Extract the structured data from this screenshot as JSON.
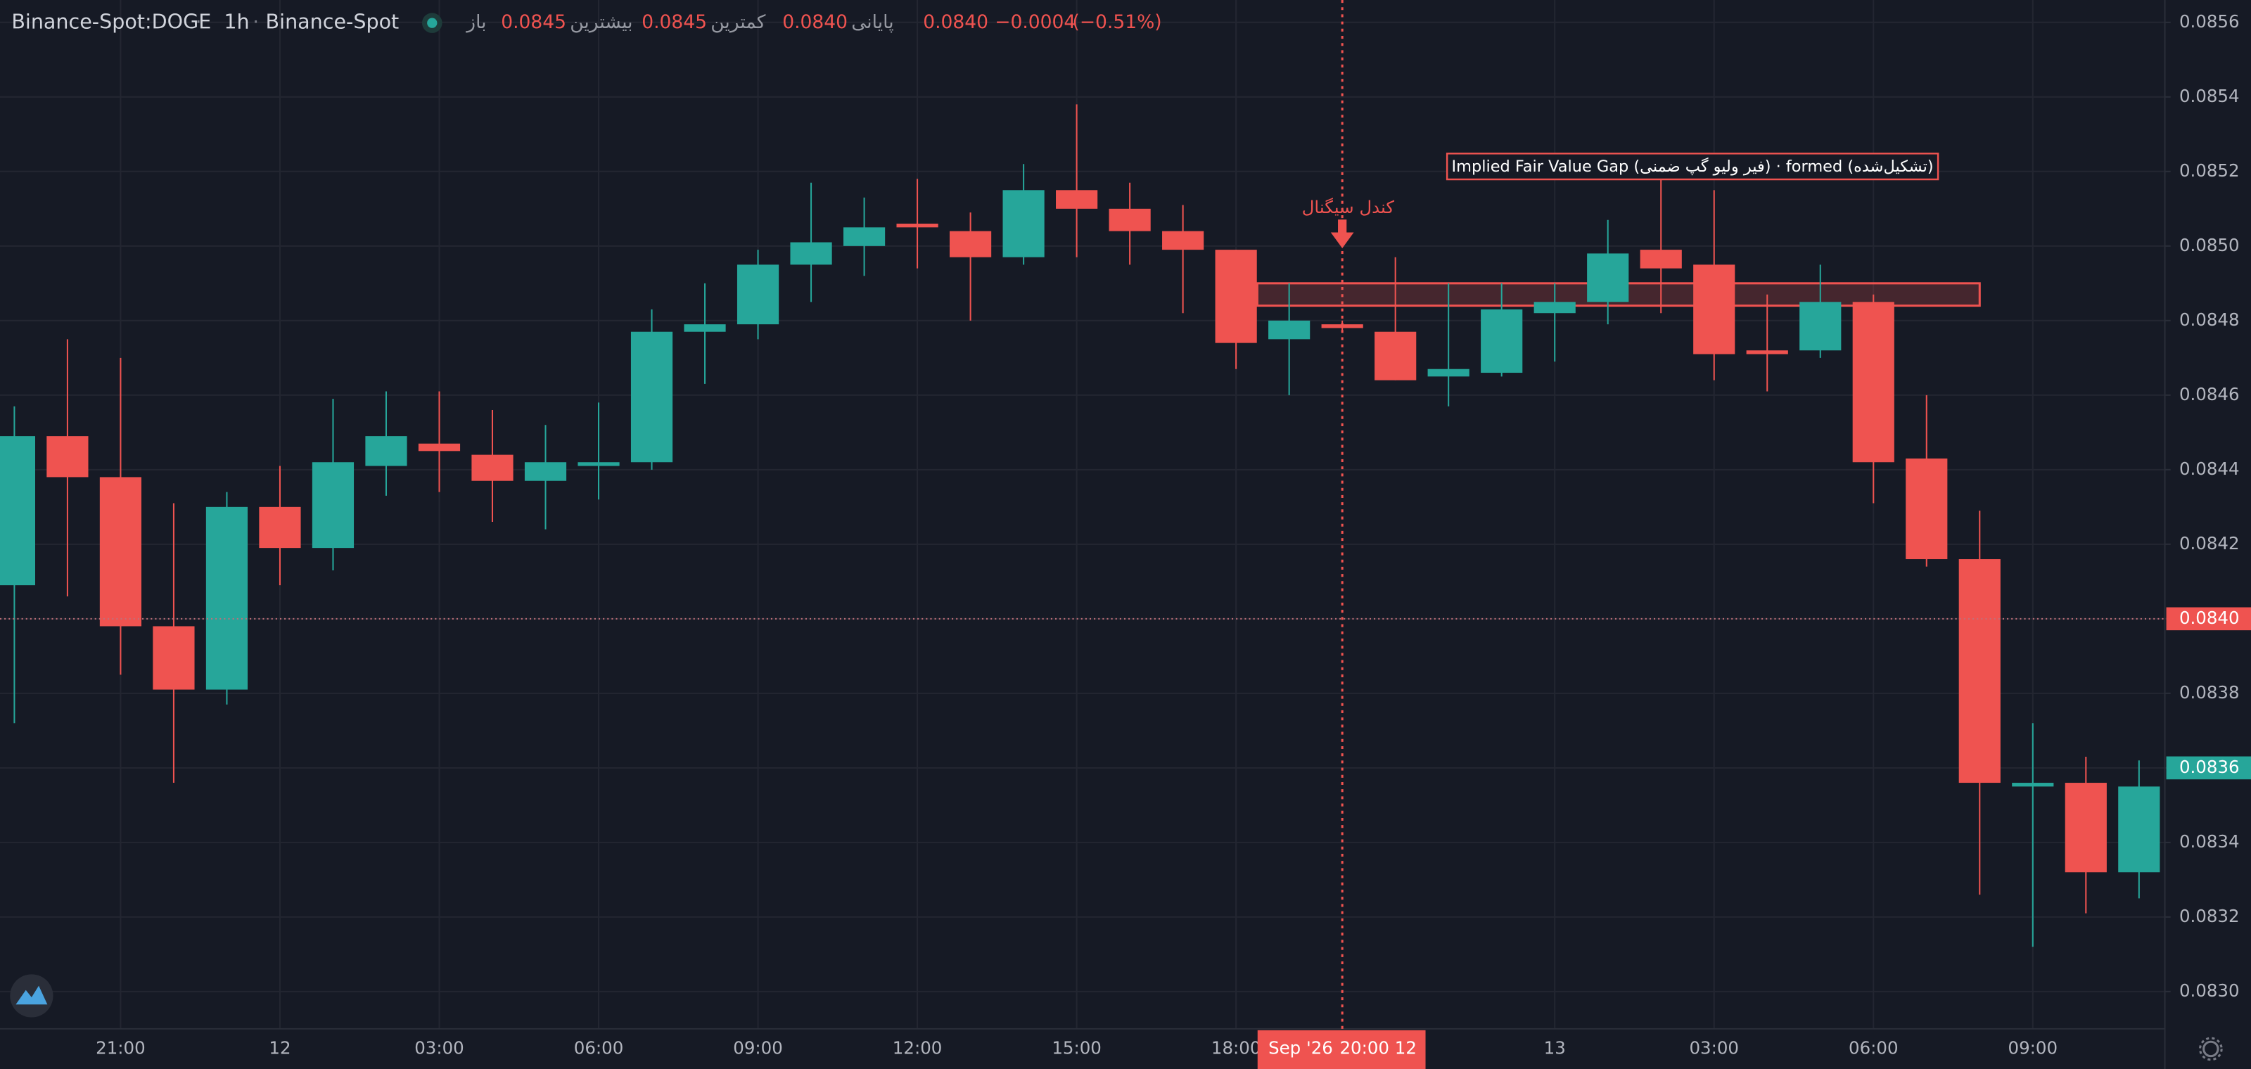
{
  "chart_data": {
    "type": "candlestick",
    "symbol": "Binance-Spot:DOGE",
    "interval": "1h",
    "exchange": "Binance-Spot",
    "legend": [
      {
        "label": "باز",
        "value": 0.0845
      },
      {
        "label": "بیشترین",
        "value": 0.0845
      },
      {
        "label": "کمترین",
        "value": {
          "value": 0.084,
          "label": "0.0840"
        }
      },
      {
        "label": "پایانی",
        "value": {
          "value": 0.084,
          "label": "0.0840"
        }
      }
    ],
    "change": {
      "value": -0.0004,
      "label": "−0.0004"
    },
    "change_percent": {
      "value": -0.51,
      "label": "(−0.51%)"
    },
    "categories": [
      null,
      null,
      "21:00",
      null,
      null,
      "12",
      null,
      null,
      "03:00",
      null,
      null,
      "06:00",
      null,
      null,
      "09:00",
      null,
      null,
      "12:00",
      null,
      null,
      "15:00",
      null,
      null,
      "18:00",
      null,
      null,
      null,
      null,
      null,
      "13",
      null,
      null,
      "03:00",
      null,
      null,
      "06:00",
      null,
      null,
      "09:00",
      null,
      null
    ],
    "open": [
      0.08409,
      0.08449,
      0.08438,
      0.08398,
      0.08381,
      0.0843,
      0.08419,
      0.08441,
      0.08447,
      0.08444,
      0.08437,
      0.08441,
      0.08442,
      0.08477,
      0.08479,
      0.08495,
      0.085,
      0.08506,
      0.08504,
      0.08497,
      0.08515,
      0.0851,
      0.08504,
      0.08499,
      0.08475,
      0.08479,
      0.08477,
      0.08465,
      0.08466,
      0.08482,
      0.08485,
      0.08499,
      0.08495,
      0.08472,
      0.08472,
      0.08485,
      0.08443,
      0.08416,
      0.08355,
      0.08356,
      0.08332
    ],
    "high": [
      0.08457,
      0.08475,
      0.0847,
      0.08431,
      0.08434,
      0.08441,
      0.08459,
      0.08461,
      0.08461,
      0.08456,
      0.08452,
      0.08458,
      0.08483,
      0.0849,
      0.08499,
      0.08517,
      0.08513,
      0.08518,
      0.08509,
      0.08522,
      0.08538,
      0.08517,
      0.08511,
      0.08499,
      0.0849,
      0.0848,
      0.08497,
      0.0849,
      0.0849,
      0.0849,
      0.08507,
      0.08518,
      0.08515,
      0.08487,
      0.08495,
      0.08487,
      0.0846,
      0.08429,
      0.08372,
      0.08363,
      0.08362
    ],
    "low": [
      0.08372,
      0.08406,
      0.08385,
      0.08356,
      0.08377,
      0.08409,
      0.08413,
      0.08433,
      0.08434,
      0.08426,
      0.08424,
      0.08432,
      0.0844,
      0.08463,
      0.08475,
      0.08485,
      0.08492,
      0.08494,
      0.0848,
      0.08495,
      0.08497,
      0.08495,
      0.08482,
      0.08467,
      0.0846,
      0.08477,
      0.08464,
      0.08457,
      0.08465,
      0.08469,
      0.08479,
      0.08482,
      0.08464,
      0.08461,
      0.0847,
      0.08431,
      0.08414,
      0.08326,
      0.08312,
      0.08321,
      0.08325
    ],
    "close": [
      0.08449,
      0.08438,
      0.08398,
      0.08381,
      0.0843,
      0.08419,
      0.08442,
      0.08449,
      0.08445,
      0.08437,
      0.08442,
      0.08442,
      0.08477,
      0.08479,
      0.08495,
      0.08501,
      0.08505,
      0.08505,
      0.08497,
      0.08515,
      0.0851,
      0.08504,
      0.08499,
      0.08474,
      0.0848,
      0.08478,
      0.08464,
      0.08467,
      0.08483,
      0.08485,
      0.08498,
      0.08494,
      0.08471,
      0.08471,
      0.08485,
      0.08442,
      0.08416,
      0.08356,
      0.08356,
      0.08332,
      0.08355
    ],
    "up_color": "#26a69a",
    "down_color": "#ef5350",
    "ylim": [
      0.0829,
      0.08566
    ],
    "yticks": [
      {
        "value": 0.083,
        "label": "0.0830"
      },
      0.0832,
      0.0834,
      0.0836,
      0.0838,
      {
        "value": 0.084,
        "label": "0.0840"
      },
      0.0842,
      0.0844,
      0.0846,
      0.0848,
      {
        "value": 0.085,
        "label": "0.0850"
      },
      0.0852,
      0.0854,
      0.0856
    ],
    "grid": true,
    "fvg": {
      "label": "Implied Fair Value Gap (فیر ولیو گپ ضمنی) · formed (تشکیل‌شده)",
      "top": 0.0849,
      "bottom": 0.08484
    },
    "signal": {
      "label": "کندل سیگنال"
    },
    "crosshair": {
      "date_label": "Sep '26",
      "time_label": "20:00 12",
      "price": {
        "value": 0.084,
        "label": "0.0840"
      }
    },
    "last_price": {
      "value": 0.0836,
      "label": "0.0836"
    }
  }
}
